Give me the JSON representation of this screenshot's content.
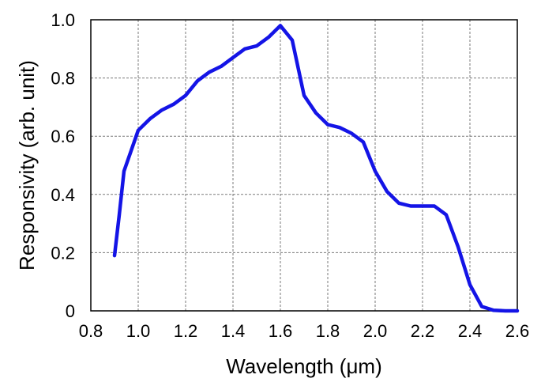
{
  "chart_data": {
    "type": "line",
    "title": "",
    "xlabel": "Wavelength (μm)",
    "ylabel": "Responsivity (arb. unit)",
    "xlim": [
      0.8,
      2.6
    ],
    "ylim": [
      0,
      1.0
    ],
    "x_ticks": [
      "0.8",
      "1.0",
      "1.2",
      "1.4",
      "1.6",
      "1.8",
      "2.0",
      "2.2",
      "2.4",
      "2.6"
    ],
    "y_ticks": [
      "0",
      "0.2",
      "0.4",
      "0.6",
      "0.8",
      "1.0"
    ],
    "grid": true,
    "legend": "none",
    "series": [
      {
        "color": "#1414e6",
        "x": [
          0.9,
          0.92,
          0.94,
          0.97,
          1.0,
          1.05,
          1.1,
          1.15,
          1.2,
          1.25,
          1.3,
          1.35,
          1.4,
          1.45,
          1.5,
          1.55,
          1.6,
          1.65,
          1.7,
          1.75,
          1.8,
          1.85,
          1.9,
          1.95,
          2.0,
          2.05,
          2.1,
          2.15,
          2.2,
          2.25,
          2.3,
          2.35,
          2.4,
          2.45,
          2.5,
          2.55,
          2.6
        ],
        "y": [
          0.19,
          0.33,
          0.48,
          0.55,
          0.62,
          0.66,
          0.69,
          0.71,
          0.74,
          0.79,
          0.82,
          0.84,
          0.87,
          0.9,
          0.91,
          0.94,
          0.98,
          0.93,
          0.74,
          0.68,
          0.64,
          0.63,
          0.61,
          0.58,
          0.48,
          0.41,
          0.37,
          0.36,
          0.36,
          0.36,
          0.33,
          0.22,
          0.09,
          0.015,
          0.002,
          0.0,
          0.0
        ]
      }
    ]
  }
}
